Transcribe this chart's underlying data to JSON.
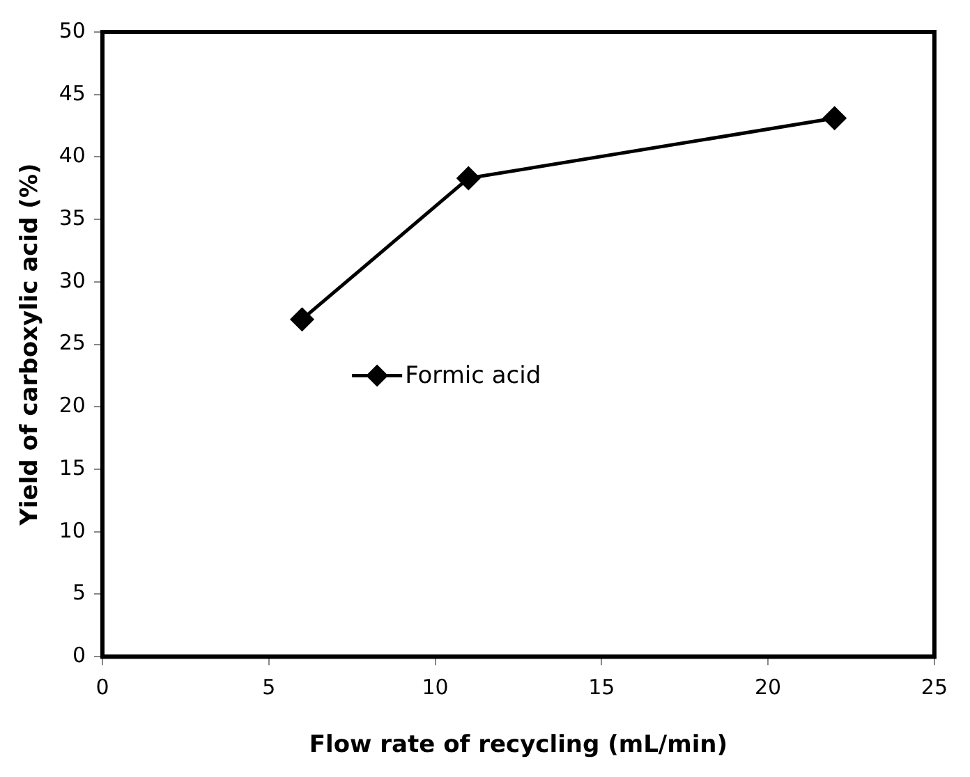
{
  "chart_data": {
    "type": "line",
    "xlabel": "Flow rate of recycling (mL/min)",
    "ylabel": "Yield of carboxylic acid (%)",
    "x": [
      6,
      11,
      22
    ],
    "series": [
      {
        "name": "Formic acid",
        "color": "#000000",
        "values": [
          27,
          38.3,
          43.1
        ]
      }
    ],
    "xlim": [
      0,
      25
    ],
    "xticks": [
      0,
      5,
      10,
      15,
      20,
      25
    ],
    "ylim": [
      0,
      50
    ],
    "yticks": [
      0,
      5,
      10,
      15,
      20,
      25,
      30,
      35,
      40,
      45,
      50
    ],
    "grid": false,
    "legend": "center left",
    "marker": "diamond",
    "line_style": "solid"
  }
}
